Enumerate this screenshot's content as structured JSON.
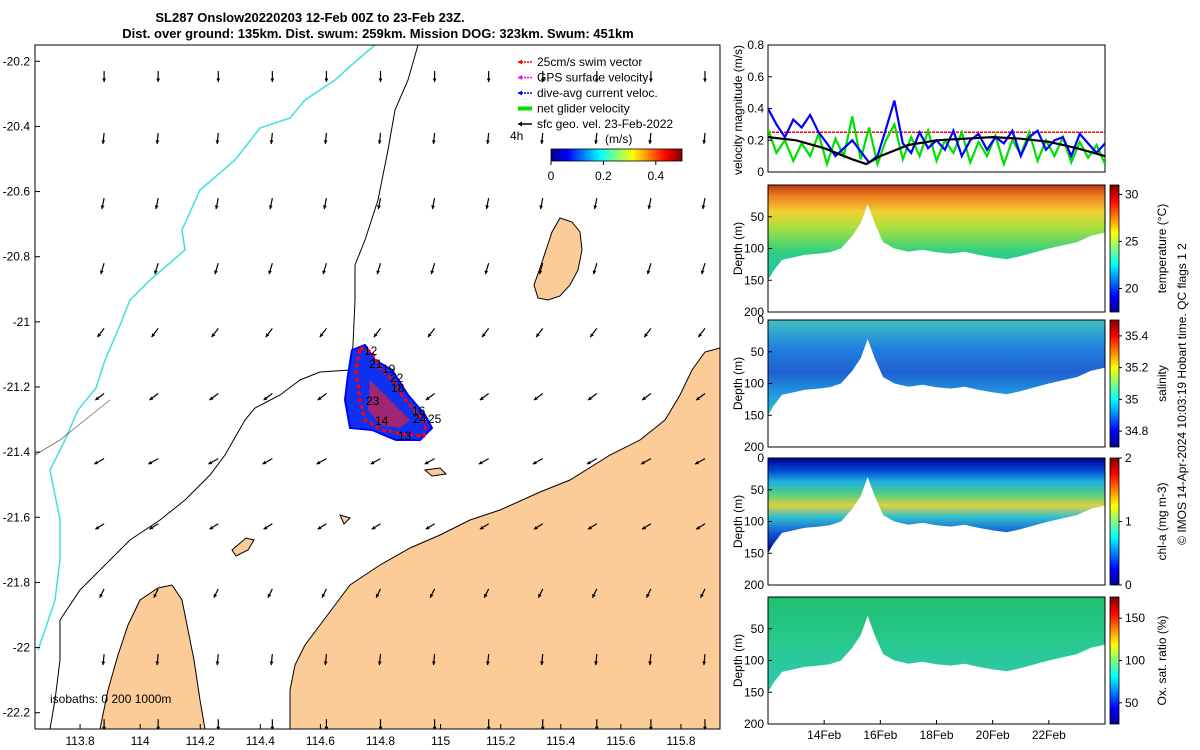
{
  "title": {
    "line1": "SL287 Onslow20220203 12-Feb 00Z to 23-Feb 23Z.",
    "line2": "Dist. over ground: 135km. Dist. swum: 259km. Mission DOG: 323km. Swum: 451km"
  },
  "colors": {
    "land": "#fbcb98",
    "coast": "#000000",
    "isobath_0": "#000000",
    "isobath_200": "#000000",
    "isobath_1000": "#3fe0e0",
    "swim_vector": "#ff0000",
    "gps_velocity": "#ff00ff",
    "current": "#0000ff",
    "net_velocity": "#00e000",
    "geo_vector": "#000000"
  },
  "map": {
    "xlim": [
      113.65,
      115.93
    ],
    "ylim": [
      -22.25,
      -20.15
    ],
    "xticks": [
      "113.8",
      "114",
      "114.2",
      "114.4",
      "114.6",
      "114.8",
      "115",
      "115.2",
      "115.4",
      "115.6",
      "115.8"
    ],
    "xtick_values": [
      113.8,
      114.0,
      114.2,
      114.4,
      114.6,
      114.8,
      115.0,
      115.2,
      115.4,
      115.6,
      115.8
    ],
    "yticks": [
      "-20.2",
      "-20.4",
      "-20.6",
      "-20.8",
      "-21",
      "-21.2",
      "-21.4",
      "-21.6",
      "-21.8",
      "-22",
      "-22.2"
    ],
    "ytick_values": [
      -20.2,
      -20.4,
      -20.6,
      -20.8,
      -21.0,
      -21.2,
      -21.4,
      -21.6,
      -21.8,
      -22.0,
      -22.2
    ],
    "isobath_label": "isobaths: 0   200  1000m",
    "legend": [
      {
        "label": "25cm/s swim vector",
        "color": "#ff0000",
        "style": "vector"
      },
      {
        "label": "GPS surface velocity",
        "color": "#ff00ff",
        "style": "vector"
      },
      {
        "label": "dive-avg current veloc.",
        "color": "#0000ff",
        "style": "vector"
      },
      {
        "label": "net glider velocity",
        "color": "#00e000",
        "style": "thick"
      },
      {
        "label": "sfc geo. vel. 23-Feb-2022",
        "color": "#000000",
        "style": "vector"
      }
    ],
    "legend_extra": "4h",
    "colorbar": {
      "unit": "(m/s)",
      "ticks": [
        "0",
        "0.2",
        "0.4"
      ],
      "tick_values": [
        0,
        0.2,
        0.4
      ],
      "range": [
        0,
        0.5
      ]
    },
    "track_labels": [
      "12",
      "21",
      "19",
      "22",
      "18",
      "23",
      "16",
      "14",
      "24",
      "25",
      "13"
    ],
    "geo_arrow_lons": [
      113.88,
      114.06,
      114.26,
      114.44,
      114.62,
      114.8,
      114.98,
      115.16,
      115.34,
      115.52,
      115.7,
      115.88
    ],
    "geo_arrow_lats": [
      -20.23,
      -20.42,
      -20.62,
      -20.82,
      -21.02,
      -21.22,
      -21.42,
      -21.62,
      -21.82,
      -22.02,
      -22.22
    ],
    "geo_arrow_rows": [
      {
        "dx": 0.0,
        "dy": -1.0
      },
      {
        "dx": -0.1,
        "dy": -1.0
      },
      {
        "dx": -0.2,
        "dy": -1.0
      },
      {
        "dx": -0.3,
        "dy": -1.0
      },
      {
        "dx": -0.6,
        "dy": -0.8
      },
      {
        "dx": -0.8,
        "dy": -0.6
      },
      {
        "dx": -0.9,
        "dy": -0.5
      },
      {
        "dx": -0.8,
        "dy": -0.5
      },
      {
        "dx": -0.4,
        "dy": -0.8
      },
      {
        "dx": -0.1,
        "dy": -1.0
      },
      {
        "dx": 0.0,
        "dy": -1.0
      }
    ]
  },
  "chart_data": [
    {
      "type": "line",
      "title": "",
      "xlabel": "",
      "ylabel": "velocity magnitude (m/s)",
      "xlim": [
        12.0,
        24.0
      ],
      "ylim": [
        0,
        0.8
      ],
      "yticks": [
        "0",
        "0.2",
        "0.4",
        "0.6",
        "0.8"
      ],
      "ytick_values": [
        0,
        0.2,
        0.4,
        0.6,
        0.8
      ],
      "series": [
        {
          "name": "swim vector",
          "color": "#ff0000",
          "x": [
            12.0,
            14.0,
            16.0,
            18.0,
            20.0,
            22.0,
            24.0
          ],
          "y": [
            0.25,
            0.25,
            0.25,
            0.25,
            0.25,
            0.25,
            0.25
          ]
        },
        {
          "name": "net glider velocity",
          "color": "#00e000",
          "x": [
            12.0,
            12.3,
            12.6,
            12.9,
            13.2,
            13.5,
            13.8,
            14.1,
            14.4,
            14.7,
            15.0,
            15.3,
            15.6,
            15.9,
            16.2,
            16.5,
            16.8,
            17.1,
            17.4,
            17.7,
            18.0,
            18.3,
            18.6,
            18.9,
            19.2,
            19.5,
            19.8,
            20.1,
            20.4,
            20.7,
            21.0,
            21.3,
            21.6,
            21.9,
            22.2,
            22.5,
            22.8,
            23.1,
            23.4,
            23.7,
            24.0
          ],
          "y": [
            0.27,
            0.12,
            0.2,
            0.07,
            0.18,
            0.1,
            0.24,
            0.05,
            0.21,
            0.1,
            0.35,
            0.08,
            0.28,
            0.05,
            0.2,
            0.3,
            0.08,
            0.22,
            0.1,
            0.26,
            0.07,
            0.2,
            0.12,
            0.25,
            0.06,
            0.19,
            0.1,
            0.23,
            0.05,
            0.2,
            0.11,
            0.25,
            0.07,
            0.2,
            0.1,
            0.22,
            0.06,
            0.19,
            0.09,
            0.17,
            0.05
          ]
        },
        {
          "name": "dive-avg current",
          "color": "#0000ff",
          "x": [
            12.0,
            12.3,
            12.6,
            12.9,
            13.2,
            13.5,
            13.8,
            14.1,
            14.4,
            14.7,
            15.0,
            15.3,
            15.6,
            15.9,
            16.2,
            16.5,
            16.8,
            17.1,
            17.4,
            17.7,
            18.0,
            18.3,
            18.6,
            18.9,
            19.2,
            19.5,
            19.8,
            20.1,
            20.4,
            20.7,
            21.0,
            21.3,
            21.6,
            21.9,
            22.2,
            22.5,
            22.8,
            23.1,
            23.4,
            23.7,
            24.0
          ],
          "y": [
            0.4,
            0.3,
            0.22,
            0.33,
            0.28,
            0.36,
            0.25,
            0.18,
            0.1,
            0.15,
            0.2,
            0.13,
            0.06,
            0.1,
            0.27,
            0.45,
            0.18,
            0.12,
            0.25,
            0.15,
            0.2,
            0.14,
            0.26,
            0.1,
            0.2,
            0.24,
            0.14,
            0.22,
            0.18,
            0.26,
            0.1,
            0.22,
            0.26,
            0.14,
            0.2,
            0.22,
            0.1,
            0.24,
            0.18,
            0.12,
            0.18
          ]
        },
        {
          "name": "smoothed",
          "color": "#000000",
          "x": [
            12.0,
            13.0,
            14.0,
            15.0,
            15.5,
            16.0,
            17.0,
            18.0,
            19.0,
            20.0,
            21.0,
            22.0,
            23.0,
            24.0
          ],
          "y": [
            0.22,
            0.2,
            0.15,
            0.08,
            0.05,
            0.1,
            0.17,
            0.2,
            0.21,
            0.22,
            0.21,
            0.19,
            0.15,
            0.1
          ]
        }
      ]
    },
    {
      "type": "heatmap",
      "variable": "temperature",
      "ylabel": "Depth (m)",
      "cbar_label": "temperature (°C)",
      "clim": [
        17.5,
        31
      ],
      "cbar_ticks": [
        "20",
        "25",
        "30"
      ],
      "cbar_tick_values": [
        20,
        25,
        30
      ],
      "xlim": [
        12.0,
        24.0
      ],
      "ylim": [
        200,
        0
      ],
      "yticks": [
        "50",
        "100",
        "150",
        "200"
      ],
      "ytick_values": [
        50,
        100,
        150,
        200
      ],
      "profile": {
        "x": [
          12.0,
          12.2,
          12.5,
          12.9,
          13.3,
          13.8,
          14.2,
          14.6,
          15.0,
          15.3,
          15.55,
          15.8,
          16.1,
          16.5,
          17.0,
          17.5,
          18.0,
          18.5,
          19.0,
          19.5,
          20.0,
          20.5,
          21.0,
          21.5,
          22.0,
          22.5,
          23.0,
          23.5,
          24.0
        ],
        "depth": [
          150,
          135,
          118,
          114,
          110,
          108,
          106,
          100,
          80,
          60,
          30,
          60,
          90,
          100,
          105,
          102,
          106,
          108,
          105,
          110,
          114,
          117,
          112,
          106,
          100,
          95,
          90,
          80,
          75
        ]
      }
    },
    {
      "type": "heatmap",
      "variable": "salinity",
      "ylabel": "Depth (m)",
      "cbar_label": "salinity",
      "clim": [
        34.7,
        35.5
      ],
      "cbar_ticks": [
        "34.8",
        "35",
        "35.2",
        "35.4"
      ],
      "cbar_tick_values": [
        34.8,
        35.0,
        35.2,
        35.4
      ],
      "xlim": [
        12.0,
        24.0
      ],
      "ylim": [
        200,
        0
      ],
      "yticks": [
        "0",
        "50",
        "100",
        "150",
        "200"
      ],
      "ytick_values": [
        0,
        50,
        100,
        150,
        200
      ],
      "profile": {
        "x": [
          12.0,
          12.2,
          12.5,
          12.9,
          13.3,
          13.8,
          14.2,
          14.6,
          15.0,
          15.3,
          15.55,
          15.8,
          16.1,
          16.5,
          17.0,
          17.5,
          18.0,
          18.5,
          19.0,
          19.5,
          20.0,
          20.5,
          21.0,
          21.5,
          22.0,
          22.5,
          23.0,
          23.5,
          24.0
        ],
        "depth": [
          150,
          135,
          118,
          114,
          110,
          108,
          106,
          100,
          80,
          60,
          30,
          60,
          90,
          100,
          105,
          102,
          106,
          108,
          105,
          110,
          114,
          117,
          112,
          106,
          100,
          95,
          90,
          80,
          75
        ]
      }
    },
    {
      "type": "heatmap",
      "variable": "chl-a",
      "ylabel": "Depth (m)",
      "cbar_label": "chl-a (mg m-3)",
      "clim": [
        0,
        2
      ],
      "cbar_ticks": [
        "0",
        "1",
        "2"
      ],
      "cbar_tick_values": [
        0,
        1,
        2
      ],
      "xlim": [
        12.0,
        24.0
      ],
      "ylim": [
        200,
        0
      ],
      "yticks": [
        "0",
        "50",
        "100",
        "150",
        "200"
      ],
      "ytick_values": [
        0,
        50,
        100,
        150,
        200
      ],
      "profile": {
        "x": [
          12.0,
          12.2,
          12.5,
          12.9,
          13.3,
          13.8,
          14.2,
          14.6,
          15.0,
          15.3,
          15.55,
          15.8,
          16.1,
          16.5,
          17.0,
          17.5,
          18.0,
          18.5,
          19.0,
          19.5,
          20.0,
          20.5,
          21.0,
          21.5,
          22.0,
          22.5,
          23.0,
          23.5,
          24.0
        ],
        "depth": [
          150,
          135,
          118,
          114,
          110,
          108,
          106,
          100,
          80,
          60,
          30,
          60,
          90,
          100,
          105,
          102,
          106,
          108,
          105,
          110,
          114,
          117,
          112,
          106,
          100,
          95,
          90,
          80,
          75
        ]
      }
    },
    {
      "type": "heatmap",
      "variable": "oxygen saturation",
      "ylabel": "Depth (m)",
      "cbar_label": "Ox. sat. ratio (%)",
      "clim": [
        25,
        175
      ],
      "cbar_ticks": [
        "50",
        "100",
        "150"
      ],
      "cbar_tick_values": [
        50,
        100,
        150
      ],
      "xlim": [
        12.0,
        24.0
      ],
      "ylim": [
        200,
        0
      ],
      "yticks": [
        "50",
        "100",
        "150",
        "200"
      ],
      "ytick_values": [
        50,
        100,
        150,
        200
      ],
      "xticks": [
        "14Feb",
        "16Feb",
        "18Feb",
        "20Feb",
        "22Feb"
      ],
      "xtick_values": [
        14,
        16,
        18,
        20,
        22
      ],
      "profile": {
        "x": [
          12.0,
          12.2,
          12.5,
          12.9,
          13.3,
          13.8,
          14.2,
          14.6,
          15.0,
          15.3,
          15.55,
          15.8,
          16.1,
          16.5,
          17.0,
          17.5,
          18.0,
          18.5,
          19.0,
          19.5,
          20.0,
          20.5,
          21.0,
          21.5,
          22.0,
          22.5,
          23.0,
          23.5,
          24.0
        ],
        "depth": [
          150,
          135,
          118,
          114,
          110,
          108,
          106,
          100,
          80,
          60,
          30,
          60,
          90,
          100,
          105,
          102,
          106,
          108,
          105,
          110,
          114,
          117,
          112,
          106,
          100,
          95,
          90,
          80,
          75
        ]
      }
    }
  ],
  "footer": "© IMOS 14-Apr-2024 10:03:19 Hobart time. QC flags 1  2"
}
